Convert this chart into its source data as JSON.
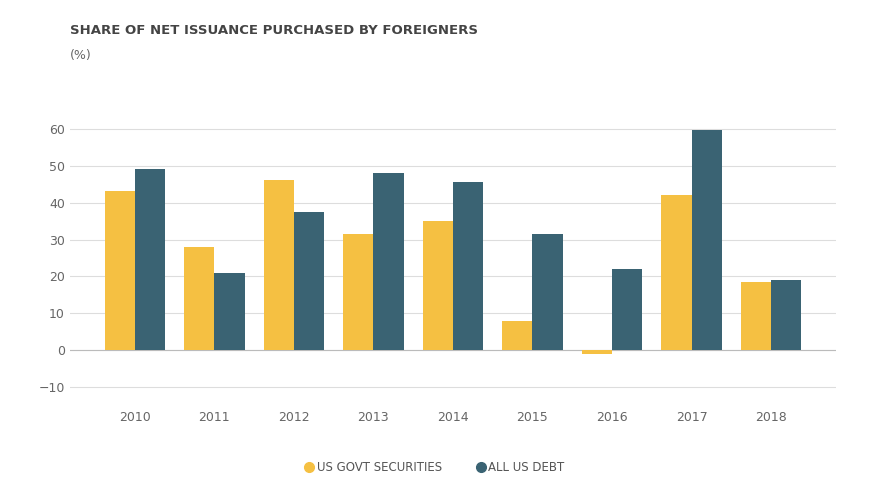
{
  "title": "SHARE OF NET ISSUANCE PURCHASED BY FOREIGNERS",
  "ylabel": "(%)",
  "years": [
    2010,
    2011,
    2012,
    2013,
    2014,
    2015,
    2016,
    2017,
    2018
  ],
  "us_govt": [
    43,
    28,
    46,
    31.5,
    35,
    8,
    -1,
    42,
    18.5
  ],
  "all_debt": [
    49,
    21,
    37.5,
    48,
    45.5,
    31.5,
    22,
    59.5,
    19
  ],
  "color_govt": "#F5C042",
  "color_debt": "#3A6373",
  "legend_govt": "US GOVT SECURITIES",
  "legend_debt": "ALL US DEBT",
  "ylim": [
    -15,
    68
  ],
  "yticks": [
    -10,
    0,
    10,
    20,
    30,
    40,
    50,
    60
  ],
  "bar_width": 0.38,
  "background_color": "#ffffff",
  "grid_color": "#dddddd",
  "title_fontsize": 9.5,
  "tick_fontsize": 9,
  "legend_fontsize": 8.5
}
